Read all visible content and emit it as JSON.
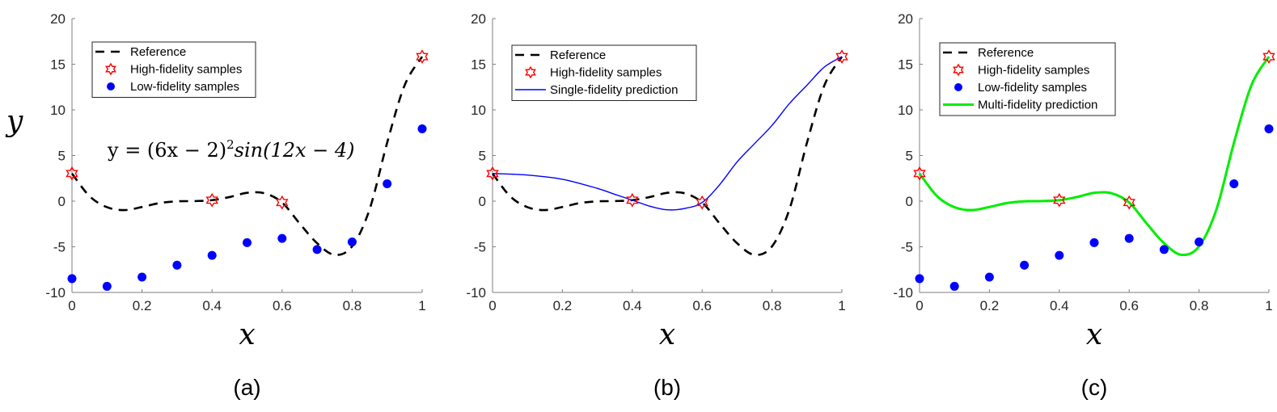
{
  "figure": {
    "y_axis_symbol": "y",
    "equation": "y = (6x − 2)²sin(12x − 4)",
    "equation_parts": {
      "lhs": "y = (6x − 2)",
      "sup": "2",
      "rhs": "sin(12x − 4)"
    }
  },
  "colors": {
    "reference": "#000000",
    "high_fidelity": "#ff0000",
    "low_fidelity": "#0000ff",
    "single_fidelity": "#0000ff",
    "multi_fidelity": "#00ee00",
    "axis": "#7f7f7f"
  },
  "chart_data": [
    {
      "type": "line",
      "panel_label": "(a)",
      "xlabel": "x",
      "ylabel": "y",
      "xlim": [
        0,
        1
      ],
      "ylim": [
        -10,
        20
      ],
      "xticks": [
        "0",
        "0.2",
        "0.4",
        "0.6",
        "0.8",
        "1"
      ],
      "yticks": [
        "-10",
        "-5",
        "0",
        "5",
        "10",
        "15",
        "20"
      ],
      "grid": false,
      "legend_position": "top-left",
      "annotation": "y = (6x − 2)²sin(12x − 4)",
      "series": [
        {
          "name": "Reference",
          "style": "dashed-line",
          "x": [
            0,
            0.05,
            0.1,
            0.15,
            0.2,
            0.25,
            0.3,
            0.35,
            0.4,
            0.45,
            0.5,
            0.55,
            0.6,
            0.65,
            0.7,
            0.75,
            0.8,
            0.85,
            0.9,
            0.95,
            1.0
          ],
          "y": [
            3.03,
            0.55,
            -0.66,
            -0.98,
            -0.64,
            -0.21,
            -0.02,
            0.01,
            0.11,
            0.45,
            0.91,
            0.86,
            -0.15,
            -2.44,
            -4.61,
            -5.88,
            -4.95,
            -0.88,
            6.4,
            12.7,
            15.83
          ]
        },
        {
          "name": "High-fidelity samples",
          "style": "star-marker",
          "x": [
            0,
            0.4,
            0.6,
            1.0
          ],
          "y": [
            3.03,
            0.11,
            -0.15,
            15.83
          ]
        },
        {
          "name": "Low-fidelity samples",
          "style": "dot-marker",
          "x": [
            0,
            0.1,
            0.2,
            0.3,
            0.4,
            0.5,
            0.6,
            0.7,
            0.8,
            0.9,
            1.0
          ],
          "y": [
            -8.49,
            -9.33,
            -8.32,
            -7.01,
            -5.94,
            -4.55,
            -4.08,
            -5.3,
            -4.47,
            1.9,
            7.92
          ]
        }
      ]
    },
    {
      "type": "line",
      "panel_label": "(b)",
      "xlabel": "x",
      "ylabel": "",
      "xlim": [
        0,
        1
      ],
      "ylim": [
        -10,
        20
      ],
      "xticks": [
        "0",
        "0.2",
        "0.4",
        "0.6",
        "0.8",
        "1"
      ],
      "yticks": [
        "-10",
        "-5",
        "0",
        "5",
        "10",
        "15",
        "20"
      ],
      "grid": false,
      "legend_position": "top-left",
      "series": [
        {
          "name": "Reference",
          "style": "dashed-line",
          "x": [
            0,
            0.05,
            0.1,
            0.15,
            0.2,
            0.25,
            0.3,
            0.35,
            0.4,
            0.45,
            0.5,
            0.55,
            0.6,
            0.65,
            0.7,
            0.75,
            0.8,
            0.85,
            0.9,
            0.95,
            1.0
          ],
          "y": [
            3.03,
            0.55,
            -0.66,
            -0.98,
            -0.64,
            -0.21,
            -0.02,
            0.01,
            0.11,
            0.45,
            0.91,
            0.86,
            -0.15,
            -2.44,
            -4.61,
            -5.88,
            -4.95,
            -0.88,
            6.4,
            12.7,
            15.83
          ]
        },
        {
          "name": "High-fidelity samples",
          "style": "star-marker",
          "x": [
            0,
            0.4,
            0.6,
            1.0
          ],
          "y": [
            3.03,
            0.11,
            -0.15,
            15.83
          ]
        },
        {
          "name": "Single-fidelity prediction",
          "style": "solid-line",
          "x": [
            0,
            0.1,
            0.2,
            0.3,
            0.35,
            0.4,
            0.45,
            0.5,
            0.55,
            0.6,
            0.65,
            0.7,
            0.75,
            0.8,
            0.85,
            0.9,
            0.95,
            1.0
          ],
          "y": [
            3.03,
            2.86,
            2.4,
            1.4,
            0.75,
            0.11,
            -0.55,
            -0.95,
            -0.8,
            -0.15,
            1.8,
            4.3,
            6.3,
            8.3,
            10.7,
            12.7,
            14.7,
            15.83
          ]
        }
      ]
    },
    {
      "type": "line",
      "panel_label": "(c)",
      "xlabel": "x",
      "ylabel": "",
      "xlim": [
        0,
        1
      ],
      "ylim": [
        -10,
        20
      ],
      "xticks": [
        "0",
        "0.2",
        "0.4",
        "0.6",
        "0.8",
        "1"
      ],
      "yticks": [
        "-10",
        "-5",
        "0",
        "5",
        "10",
        "15",
        "20"
      ],
      "grid": false,
      "legend_position": "top-left",
      "series": [
        {
          "name": "Reference",
          "style": "dashed-line",
          "x": [
            0,
            0.05,
            0.1,
            0.15,
            0.2,
            0.25,
            0.3,
            0.35,
            0.4,
            0.45,
            0.5,
            0.55,
            0.6,
            0.65,
            0.7,
            0.75,
            0.8,
            0.85,
            0.9,
            0.95,
            1.0
          ],
          "y": [
            3.03,
            0.55,
            -0.66,
            -0.98,
            -0.64,
            -0.21,
            -0.02,
            0.01,
            0.11,
            0.45,
            0.91,
            0.86,
            -0.15,
            -2.44,
            -4.61,
            -5.88,
            -4.95,
            -0.88,
            6.4,
            12.7,
            15.83
          ]
        },
        {
          "name": "High-fidelity samples",
          "style": "star-marker",
          "x": [
            0,
            0.4,
            0.6,
            1.0
          ],
          "y": [
            3.03,
            0.11,
            -0.15,
            15.83
          ]
        },
        {
          "name": "Low-fidelity samples",
          "style": "dot-marker",
          "x": [
            0,
            0.1,
            0.2,
            0.3,
            0.4,
            0.5,
            0.6,
            0.7,
            0.8,
            0.9,
            1.0
          ],
          "y": [
            -8.49,
            -9.33,
            -8.32,
            -7.01,
            -5.94,
            -4.55,
            -4.08,
            -5.3,
            -4.47,
            1.9,
            7.92
          ]
        },
        {
          "name": "Multi-fidelity prediction",
          "style": "solid-thick-line",
          "x": [
            0,
            0.05,
            0.1,
            0.15,
            0.2,
            0.25,
            0.3,
            0.35,
            0.4,
            0.45,
            0.5,
            0.55,
            0.6,
            0.65,
            0.7,
            0.75,
            0.8,
            0.85,
            0.9,
            0.95,
            1.0
          ],
          "y": [
            3.03,
            0.55,
            -0.66,
            -0.98,
            -0.64,
            -0.21,
            -0.02,
            0.01,
            0.11,
            0.45,
            0.91,
            0.86,
            -0.15,
            -2.44,
            -4.61,
            -5.88,
            -4.95,
            -0.88,
            6.4,
            12.7,
            15.83
          ]
        }
      ]
    }
  ]
}
